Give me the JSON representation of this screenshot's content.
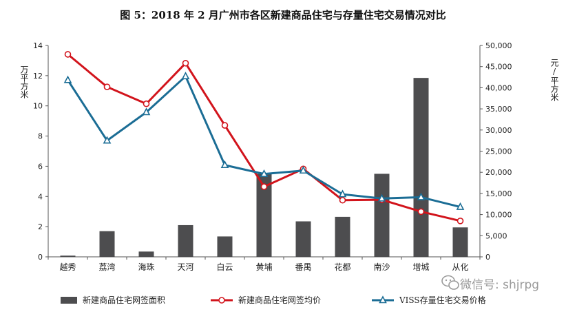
{
  "chart_data": {
    "type": "bar",
    "title": "图 5：2018 年 2 月广州市各区新建商品住宅与存量住宅交易情况对比",
    "ylabel_left": "万平方米",
    "ylabel_right": "元/平方米",
    "categories": [
      "越秀",
      "荔湾",
      "海珠",
      "天河",
      "白云",
      "黄埔",
      "番禺",
      "花都",
      "南沙",
      "增城",
      "从化"
    ],
    "ylim_left": [
      0,
      14
    ],
    "ylim_right": [
      0,
      50000
    ],
    "yticks_left": [
      "0",
      "2",
      "4",
      "6",
      "8",
      "10",
      "12",
      "14"
    ],
    "yticks_right": [
      "0",
      "5,000",
      "10,000",
      "15,000",
      "20,000",
      "25,000",
      "30,000",
      "35,000",
      "40,000",
      "45,000",
      "50,000"
    ],
    "series": [
      {
        "name": "新建商品住宅网签面积",
        "type": "bar",
        "axis": "left",
        "color": "#4d4d4f",
        "values": [
          0.08,
          1.7,
          0.35,
          2.1,
          1.35,
          5.5,
          2.35,
          2.65,
          5.5,
          11.85,
          1.95
        ]
      },
      {
        "name": "新建商品住宅网签均价",
        "type": "line",
        "axis": "right",
        "color": "#d2141c",
        "marker": "circle",
        "values": [
          47900,
          40200,
          36200,
          45800,
          31100,
          16600,
          20800,
          13400,
          13500,
          10700,
          8500
        ]
      },
      {
        "name": "VISS存量住宅交易价格",
        "type": "line",
        "axis": "right",
        "color": "#1b6d95",
        "marker": "triangle",
        "values": [
          41800,
          27500,
          34200,
          42700,
          21700,
          19600,
          20400,
          14800,
          13800,
          14100,
          11800
        ]
      }
    ],
    "legend_position": "bottom",
    "grid": false
  },
  "watermark": "微信号: shjrpg"
}
